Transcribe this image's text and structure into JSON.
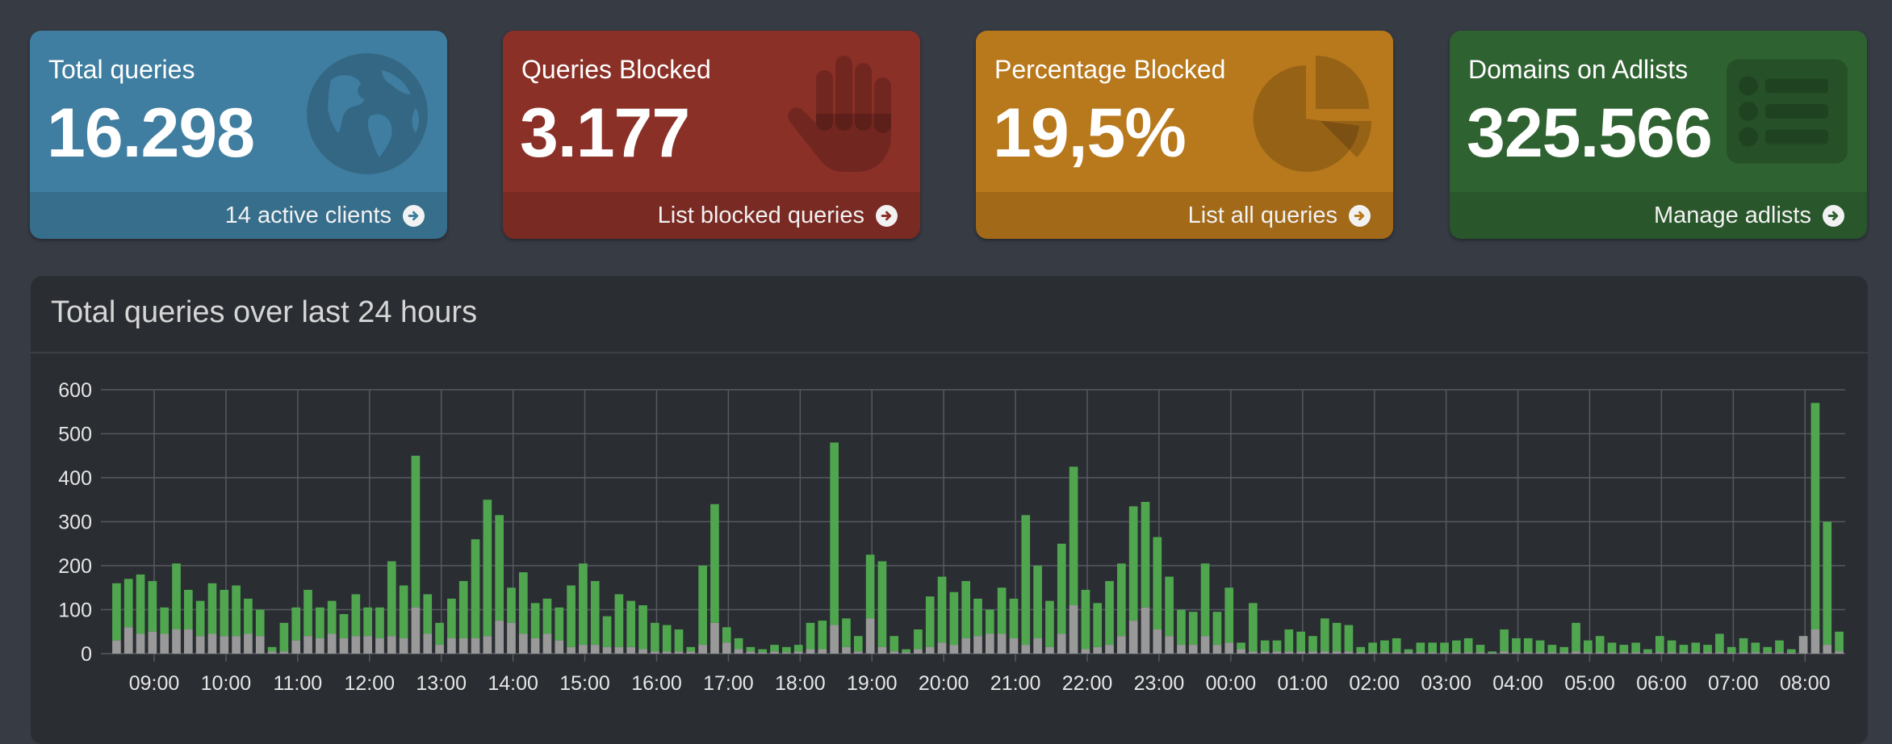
{
  "colors": {
    "total_card": "#3f7ea0",
    "blocked_card": "#8a3027",
    "percentage_card": "#b8781c",
    "adlists_card": "#2f6231",
    "permitted_bar": "#4fa64f",
    "blocked_bar": "#999999"
  },
  "cards": [
    {
      "title": "Total queries",
      "value": "16.298",
      "footer": "14 active clients",
      "icon": "globe-icon"
    },
    {
      "title": "Queries Blocked",
      "value": "3.177",
      "footer": "List blocked queries",
      "icon": "hand-icon"
    },
    {
      "title": "Percentage Blocked",
      "value": "19,5%",
      "footer": "List all queries",
      "icon": "pie-chart-icon"
    },
    {
      "title": "Domains on Adlists",
      "value": "325.566",
      "footer": "Manage adlists",
      "icon": "list-icon"
    }
  ],
  "chart_panel": {
    "title": "Total queries over last 24 hours"
  },
  "chart_data": {
    "type": "bar",
    "stacked": true,
    "ylim": [
      0,
      600
    ],
    "y_ticks": [
      0,
      100,
      200,
      300,
      400,
      500,
      600
    ],
    "x_tick_labels": [
      "09:00",
      "10:00",
      "11:00",
      "12:00",
      "13:00",
      "14:00",
      "15:00",
      "16:00",
      "17:00",
      "18:00",
      "19:00",
      "20:00",
      "21:00",
      "22:00",
      "23:00",
      "00:00",
      "01:00",
      "02:00",
      "03:00",
      "04:00",
      "05:00",
      "06:00",
      "07:00",
      "08:00"
    ],
    "interval_minutes": 10,
    "first_bin": "08:00",
    "grid": true,
    "totals": [
      160,
      170,
      180,
      165,
      105,
      205,
      145,
      120,
      160,
      145,
      155,
      125,
      100,
      15,
      70,
      105,
      145,
      105,
      120,
      90,
      135,
      105,
      105,
      210,
      155,
      450,
      135,
      70,
      125,
      165,
      260,
      350,
      315,
      150,
      185,
      115,
      125,
      105,
      155,
      205,
      165,
      85,
      135,
      120,
      110,
      70,
      65,
      55,
      15,
      200,
      340,
      60,
      35,
      15,
      10,
      20,
      15,
      20,
      70,
      75,
      480,
      80,
      40,
      225,
      210,
      40,
      10,
      55,
      130,
      175,
      140,
      165,
      125,
      100,
      150,
      125,
      315,
      200,
      120,
      250,
      425,
      145,
      115,
      165,
      205,
      335,
      345,
      265,
      175,
      100,
      95,
      205,
      95,
      150,
      25,
      115,
      30,
      30,
      55,
      50,
      40,
      80,
      70,
      65,
      15,
      25,
      30,
      35,
      10,
      25,
      25,
      25,
      30,
      35,
      20,
      5,
      55,
      35,
      35,
      30,
      20,
      15,
      70,
      30,
      40,
      25,
      20,
      25,
      10,
      40,
      30,
      20,
      25,
      20,
      45,
      15,
      35,
      25,
      15,
      30,
      10,
      40,
      570,
      300,
      50
    ],
    "blocked": [
      30,
      60,
      45,
      50,
      45,
      55,
      55,
      40,
      45,
      40,
      40,
      45,
      40,
      5,
      5,
      30,
      40,
      35,
      45,
      35,
      40,
      40,
      35,
      40,
      35,
      105,
      45,
      20,
      35,
      35,
      35,
      40,
      75,
      70,
      45,
      35,
      45,
      30,
      15,
      20,
      20,
      15,
      15,
      15,
      10,
      5,
      5,
      5,
      5,
      20,
      70,
      25,
      10,
      5,
      3,
      5,
      3,
      5,
      10,
      10,
      65,
      15,
      5,
      80,
      15,
      5,
      3,
      10,
      15,
      25,
      20,
      35,
      40,
      45,
      45,
      35,
      20,
      35,
      15,
      45,
      110,
      10,
      15,
      20,
      40,
      75,
      105,
      55,
      40,
      20,
      20,
      40,
      20,
      25,
      10,
      5,
      5,
      5,
      5,
      5,
      5,
      5,
      5,
      5,
      3,
      3,
      3,
      3,
      3,
      3,
      3,
      3,
      3,
      3,
      3,
      2,
      5,
      3,
      3,
      3,
      3,
      3,
      5,
      3,
      3,
      3,
      3,
      3,
      2,
      3,
      3,
      3,
      3,
      3,
      3,
      2,
      3,
      3,
      2,
      3,
      2,
      40,
      55,
      20,
      5
    ]
  }
}
